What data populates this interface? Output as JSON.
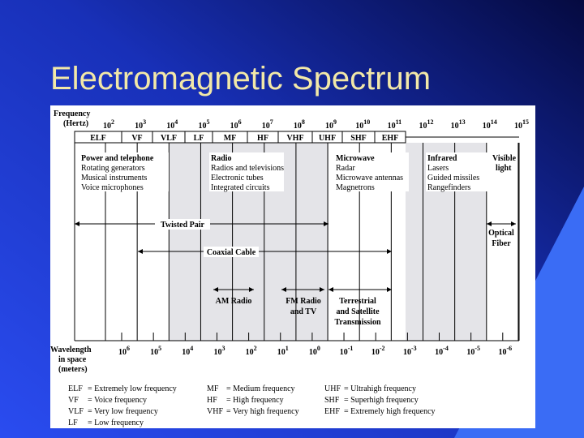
{
  "title": "Electromagnetic Spectrum",
  "frequency_label": [
    "Frequency",
    "(Hertz)"
  ],
  "frequency_ticks": [
    {
      "base": "10",
      "exp": "2"
    },
    {
      "base": "10",
      "exp": "3"
    },
    {
      "base": "10",
      "exp": "4"
    },
    {
      "base": "10",
      "exp": "5"
    },
    {
      "base": "10",
      "exp": "6"
    },
    {
      "base": "10",
      "exp": "7"
    },
    {
      "base": "10",
      "exp": "8"
    },
    {
      "base": "10",
      "exp": "9"
    },
    {
      "base": "10",
      "exp": "10"
    },
    {
      "base": "10",
      "exp": "11"
    },
    {
      "base": "10",
      "exp": "12"
    },
    {
      "base": "10",
      "exp": "13"
    },
    {
      "base": "10",
      "exp": "14"
    },
    {
      "base": "10",
      "exp": "15"
    }
  ],
  "bands": [
    "ELF",
    "VF",
    "VLF",
    "LF",
    "MF",
    "HF",
    "VHF",
    "UHF",
    "SHF",
    "EHF"
  ],
  "applications": [
    {
      "title": "Power and telephone",
      "items": [
        "Rotating generators",
        "Musical instruments",
        "Voice microphones"
      ]
    },
    {
      "title": "Radio",
      "items": [
        "Radios and televisions",
        "Electronic tubes",
        "Integrated circuits"
      ]
    },
    {
      "title": "Microwave",
      "items": [
        "Radar",
        "Microwave antennas",
        "Magnetrons"
      ]
    },
    {
      "title": "Infrared",
      "items": [
        "Lasers",
        "Guided missiles",
        "Rangefinders"
      ]
    },
    {
      "title": "Visible",
      "items": [
        "light"
      ]
    }
  ],
  "media": [
    {
      "label": [
        "Twisted Pair"
      ]
    },
    {
      "label": [
        "Optical",
        "Fiber"
      ]
    },
    {
      "label": [
        "Coaxial Cable"
      ]
    },
    {
      "label": [
        "AM Radio"
      ]
    },
    {
      "label": [
        "FM Radio",
        "and TV"
      ]
    },
    {
      "label": [
        "Terrestrial",
        "and Satellite",
        "Transmission"
      ]
    }
  ],
  "wavelength_label": [
    "Wavelength",
    "in space",
    "(meters)"
  ],
  "wavelength_ticks": [
    {
      "base": "10",
      "exp": "6"
    },
    {
      "base": "10",
      "exp": "5"
    },
    {
      "base": "10",
      "exp": "4"
    },
    {
      "base": "10",
      "exp": "3"
    },
    {
      "base": "10",
      "exp": "2"
    },
    {
      "base": "10",
      "exp": "1"
    },
    {
      "base": "10",
      "exp": "0"
    },
    {
      "base": "10",
      "exp": "-1"
    },
    {
      "base": "10",
      "exp": "-2"
    },
    {
      "base": "10",
      "exp": "-3"
    },
    {
      "base": "10",
      "exp": "-4"
    },
    {
      "base": "10",
      "exp": "-5"
    },
    {
      "base": "10",
      "exp": "-6"
    }
  ],
  "legend": [
    [
      "ELF",
      "= Extremely low frequency"
    ],
    [
      "VF",
      "= Voice frequency"
    ],
    [
      "VLF",
      "= Very low frequency"
    ],
    [
      "LF",
      "= Low frequency"
    ],
    [
      "MF",
      "= Medium frequency"
    ],
    [
      "HF",
      "= High frequency"
    ],
    [
      "VHF",
      "= Very high frequency"
    ],
    [
      "UHF",
      "= Ultrahigh frequency"
    ],
    [
      "SHF",
      "= Superhigh frequency"
    ],
    [
      "EHF",
      "= Extremely high frequency"
    ]
  ]
}
